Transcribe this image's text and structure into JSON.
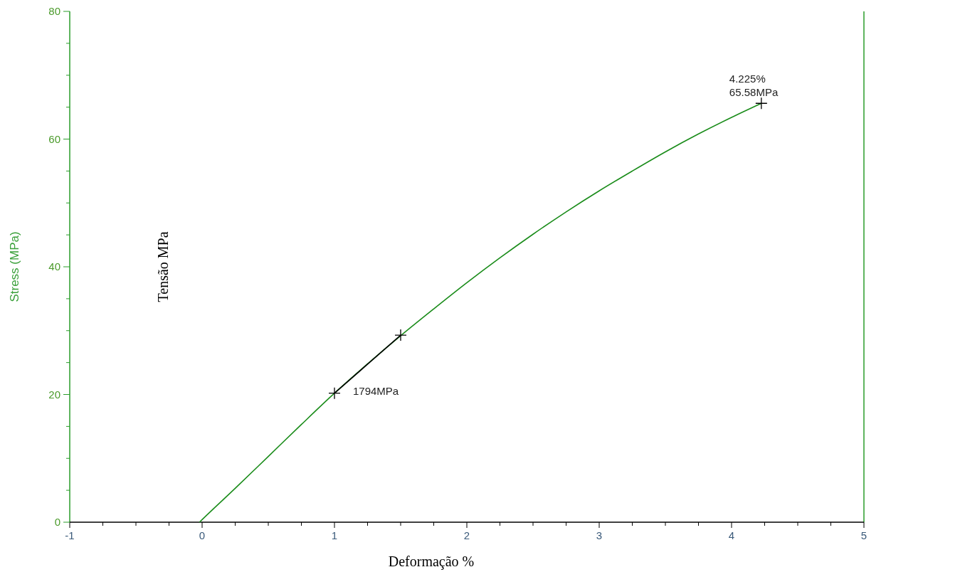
{
  "chart_data": {
    "type": "line",
    "xlabel": "Deformação %",
    "ylabel": "Stress (MPa)",
    "xlim": [
      -1,
      5
    ],
    "ylim": [
      0,
      80
    ],
    "xticks": [
      -1,
      {
        "value": -0.75,
        "label": null
      },
      {
        "value": -0.5,
        "label": null
      },
      {
        "value": -0.25,
        "label": null
      },
      0,
      {
        "value": 0.25,
        "label": null
      },
      {
        "value": 0.5,
        "label": null
      },
      {
        "value": 0.75,
        "label": null
      },
      1,
      {
        "value": 1.25,
        "label": null
      },
      {
        "value": 1.5,
        "label": null
      },
      {
        "value": 1.75,
        "label": null
      },
      2,
      {
        "value": 2.25,
        "label": null
      },
      {
        "value": 2.5,
        "label": null
      },
      {
        "value": 2.75,
        "label": null
      },
      3,
      {
        "value": 3.25,
        "label": null
      },
      {
        "value": 3.5,
        "label": null
      },
      {
        "value": 3.75,
        "label": null
      },
      4,
      {
        "value": 4.25,
        "label": null
      },
      {
        "value": 4.5,
        "label": null
      },
      {
        "value": 4.75,
        "label": null
      },
      5
    ],
    "yticks": [
      0,
      {
        "value": 5,
        "label": null
      },
      {
        "value": 10,
        "label": null
      },
      {
        "value": 15,
        "label": null
      },
      20,
      {
        "value": 25,
        "label": null
      },
      {
        "value": 30,
        "label": null
      },
      {
        "value": 35,
        "label": null
      },
      40,
      {
        "value": 45,
        "label": null
      },
      {
        "value": 50,
        "label": null
      },
      {
        "value": 55,
        "label": null
      },
      60,
      {
        "value": 65,
        "label": null
      },
      {
        "value": 70,
        "label": null
      },
      {
        "value": 75,
        "label": null
      },
      80
    ],
    "series": [
      {
        "color": "#1a8c1a",
        "x": [
          -0.02,
          0,
          0.25,
          0.5,
          0.75,
          1,
          1.25,
          1.5,
          1.75,
          2,
          2.25,
          2.5,
          2.75,
          3,
          3.25,
          3.5,
          3.75,
          4,
          4.225
        ],
        "values": [
          0,
          0.4,
          5.3,
          10.3,
          15.3,
          20.2,
          24.8,
          29.2,
          33.4,
          37.5,
          41.4,
          45.1,
          48.6,
          51.9,
          55.0,
          58.0,
          60.8,
          63.4,
          65.6
        ]
      },
      {
        "color": "#000000",
        "x": [
          1,
          1.5
        ],
        "values": [
          20.2,
          29.3
        ]
      },
      {
        "type": "scatter",
        "color": "#000000",
        "marker": "cross",
        "x": [
          1,
          1.5,
          4.225
        ],
        "values": [
          20.2,
          29.3,
          65.6
        ]
      }
    ],
    "annotations": [
      {
        "text": "4.225%\n65.58MPa",
        "x": 4.225,
        "y": 65.58
      },
      {
        "text": "1794MPa",
        "x": 1,
        "y": 20.2
      },
      "Tensão MPa"
    ],
    "grid": false
  }
}
